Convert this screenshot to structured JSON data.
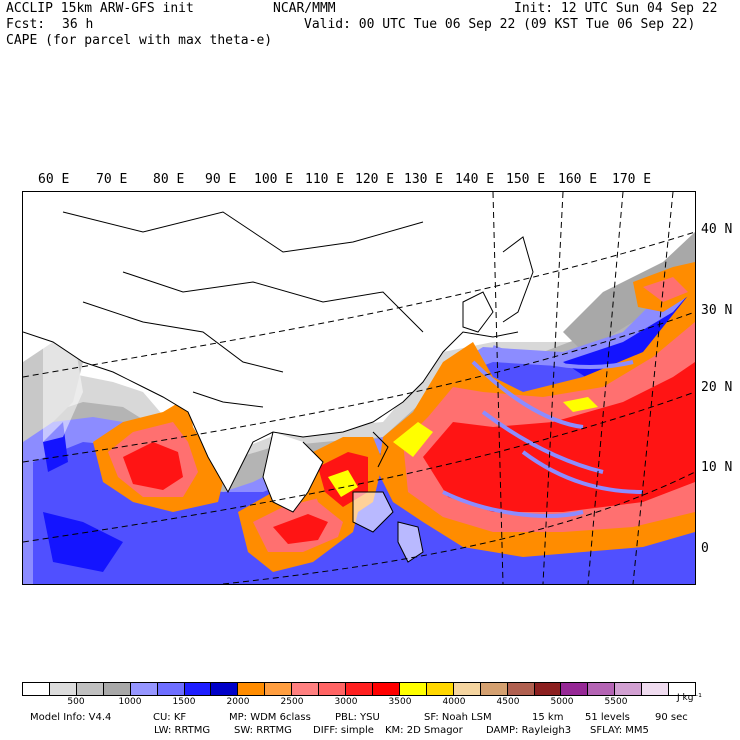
{
  "header": {
    "model_line": "ACCLIP 15km ARW-GFS init",
    "center": "NCAR/MMM",
    "init": "Init: 12 UTC Sun 04 Sep 22",
    "fcst_label": "Fcst:",
    "fcst_value": "36 h",
    "valid": "Valid: 00 UTC Tue 06 Sep 22 (09 KST Tue 06 Sep 22)",
    "field": "CAPE (for parcel with max theta-e)"
  },
  "map": {
    "lon_labels": [
      "60 E",
      "70 E",
      "80 E",
      "90 E",
      "100 E",
      "110 E",
      "120 E",
      "130 E",
      "140 E",
      "150 E",
      "160 E",
      "170 E"
    ],
    "lat_labels": [
      "40 N",
      "30 N",
      "20 N",
      "10 N",
      "0"
    ],
    "colors": {
      "land": "#ffffff",
      "gray_light": "#d8d8d8",
      "gray_mid": "#b4b4b4",
      "gray_dark": "#a0a0a0",
      "blue_light": "#8c8cff",
      "blue_mid": "#5050ff",
      "blue_dark": "#1414ff",
      "orange": "#ff8c00",
      "salmon": "#ff7070",
      "red": "#ff1414",
      "yellow": "#ffff00",
      "outline": "#000000"
    }
  },
  "colorbar": {
    "colors": [
      "#ffffff",
      "#dcdcdc",
      "#c0c0c0",
      "#a8a8a8",
      "#9696ff",
      "#6e6eff",
      "#1e1eff",
      "#0000c8",
      "#ff8c00",
      "#ff9e40",
      "#ff8080",
      "#ff6464",
      "#ff2020",
      "#ff0000",
      "#ffff00",
      "#ffd700",
      "#f5d5a0",
      "#d4a070",
      "#b06050",
      "#8c2020",
      "#962896",
      "#b464b4",
      "#d2a0d2",
      "#f0dcf0",
      "#ffffff"
    ],
    "labels": [
      "500",
      "1000",
      "1500",
      "2000",
      "2500",
      "3000",
      "3500",
      "4000",
      "4500",
      "5000",
      "5500"
    ],
    "units": "J kg⁻¹"
  },
  "footer": {
    "line1": {
      "model_info": "Model Info: V4.4",
      "cu": "CU: KF",
      "mp": "MP: WDM 6class",
      "pbl": "PBL: YSU",
      "sf": "SF: Noah LSM",
      "res": "15 km",
      "levels": "51 levels",
      "dt": "90 sec"
    },
    "line2": {
      "lw": "LW: RRTMG",
      "sw": "SW: RRTMG",
      "diff": "DIFF: simple",
      "km": "KM: 2D Smagor",
      "damp": "DAMP: Rayleigh3",
      "sflay": "SFLAY: MM5"
    }
  }
}
